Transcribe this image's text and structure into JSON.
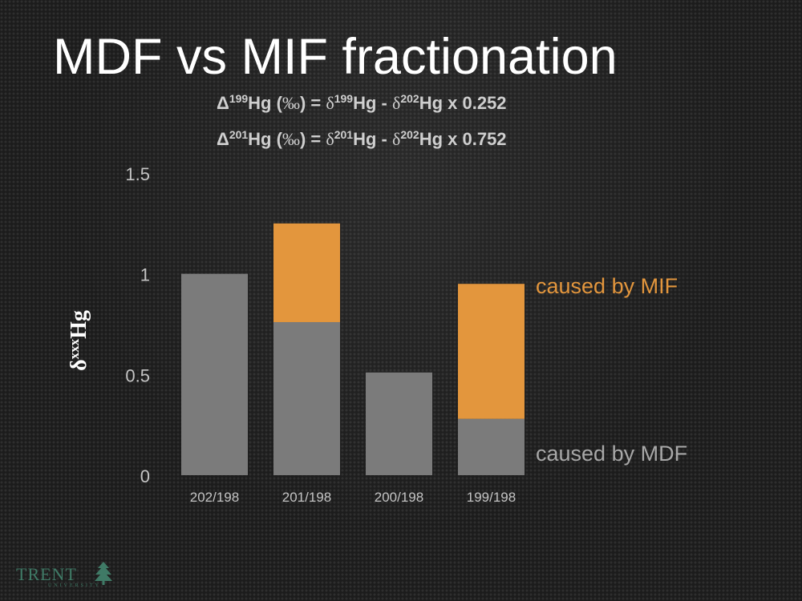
{
  "slide": {
    "title": "MDF vs MIF fractionation"
  },
  "formulas": [
    {
      "lhs_symbol": "Δ",
      "lhs_mass": "199",
      "lhs_suffix": "Hg (",
      "permil": "‰",
      "lhs_close": ") = ",
      "d1_symbol": "δ",
      "d1_mass": "199",
      "d1_suffix": "Hg - ",
      "d2_symbol": "δ",
      "d2_mass": "202",
      "d2_suffix": "Hg x 0.252"
    },
    {
      "lhs_symbol": "Δ",
      "lhs_mass": "201",
      "lhs_suffix": "Hg (",
      "permil": "‰",
      "lhs_close": ") = ",
      "d1_symbol": "δ",
      "d1_mass": "201",
      "d1_suffix": "Hg - ",
      "d2_symbol": "δ",
      "d2_mass": "202",
      "d2_suffix": "Hg x 0.752"
    }
  ],
  "y_axis_label": {
    "symbol": "δ",
    "sup": "xxx",
    "suffix": "Hg"
  },
  "logo": {
    "text": "TRENT",
    "sub": "UNIVERSITY"
  },
  "chart_data": {
    "type": "bar",
    "stacked": true,
    "categories": [
      "202/198",
      "201/198",
      "200/198",
      "199/198"
    ],
    "series": [
      {
        "name": "caused by MDF",
        "color": "#7b7b7b",
        "values": [
          1.0,
          0.76,
          0.51,
          0.28
        ]
      },
      {
        "name": "caused by MIF",
        "color": "#e3963d",
        "values": [
          0,
          0.49,
          0,
          0.67
        ]
      }
    ],
    "ylim": [
      0,
      1.5
    ],
    "yticks": [
      {
        "value": 0,
        "label": "0"
      },
      {
        "value": 0.5,
        "label": "0.5"
      },
      {
        "value": 1,
        "label": "1"
      },
      {
        "value": 1.5,
        "label": "1.5"
      }
    ],
    "grid": false,
    "legend_position": "right"
  }
}
